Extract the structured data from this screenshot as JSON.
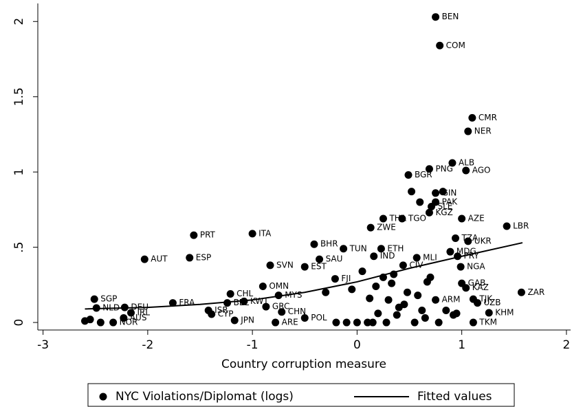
{
  "chart_data": {
    "type": "scatter",
    "xlabel": "Country corruption measure",
    "xlim": [
      -3.05,
      2.04
    ],
    "ylim": [
      -0.05,
      2.12
    ],
    "xticks": [
      -3,
      -2,
      -1,
      0,
      1,
      2
    ],
    "yticks": [
      0,
      {
        "value": 0.5,
        "label": ".5"
      },
      1,
      1.5,
      2
    ],
    "grid": false,
    "series": [
      {
        "name": "NYC Violations/Diplomat (logs)",
        "color": "#000000",
        "kind": "scatter",
        "x": [
          0.75,
          0.79,
          1.1,
          1.06,
          0.91,
          1.04,
          0.69,
          0.49,
          0.75,
          0.75,
          0.71,
          0.69,
          1.0,
          1.43,
          0.25,
          0.43,
          0.13,
          1.06,
          0.94,
          -1.56,
          -1.0,
          -2.03,
          -1.6,
          -0.41,
          -0.13,
          0.23,
          0.16,
          -0.83,
          -0.5,
          -0.36,
          0.44,
          0.99,
          0.57,
          0.89,
          0.96,
          -0.21,
          -0.9,
          1.0,
          1.04,
          1.11,
          1.15,
          1.26,
          1.11,
          1.57,
          -2.51,
          -2.49,
          -2.22,
          -2.16,
          -2.23,
          -1.76,
          -1.21,
          -1.24,
          -1.08,
          -1.42,
          -1.39,
          -1.17,
          -0.87,
          -0.72,
          -0.78,
          -0.75,
          -0.5,
          0.75,
          -2.33,
          0.52,
          0.6,
          0.82,
          0.67,
          0.35,
          0.05,
          0.18,
          0.3,
          0.48,
          0.2,
          0.62,
          0.4,
          0.1,
          -0.1,
          0.28,
          0.55,
          0.85,
          0.7,
          0.38,
          0.45,
          -0.3,
          0.0,
          -0.2,
          0.92,
          0.78,
          -2.6,
          -2.55,
          -2.45,
          -0.05,
          0.33,
          0.12,
          0.25,
          0.58,
          0.65,
          0.95,
          0.15
        ],
        "values": [
          2.03,
          1.84,
          1.36,
          1.27,
          1.06,
          1.01,
          1.02,
          0.98,
          0.86,
          0.8,
          0.77,
          0.73,
          0.69,
          0.64,
          0.69,
          0.69,
          0.63,
          0.54,
          0.56,
          0.58,
          0.59,
          0.42,
          0.43,
          0.52,
          0.49,
          0.49,
          0.44,
          0.38,
          0.37,
          0.42,
          0.38,
          0.37,
          0.43,
          0.47,
          0.44,
          0.29,
          0.24,
          0.26,
          0.23,
          0.155,
          0.13,
          0.064,
          0.0,
          0.2,
          0.155,
          0.096,
          0.1,
          0.064,
          0.03,
          0.13,
          0.19,
          0.13,
          0.14,
          0.08,
          0.055,
          0.014,
          0.105,
          0.07,
          0.0,
          0.18,
          0.03,
          0.15,
          0.0,
          0.87,
          0.8,
          0.87,
          0.27,
          0.32,
          0.34,
          0.24,
          0.15,
          0.2,
          0.06,
          0.08,
          0.1,
          0.0,
          0.0,
          0.0,
          0.0,
          0.08,
          0.3,
          0.05,
          0.12,
          0.2,
          0.0,
          0.0,
          0.05,
          0.0,
          0.01,
          0.02,
          0.0,
          0.22,
          0.26,
          0.16,
          0.3,
          0.18,
          0.03,
          0.06,
          0.0
        ],
        "labels": [
          "BEN",
          "COM",
          "CMR",
          "NER",
          "ALB",
          "AGO",
          "PNG",
          "BGR",
          "GIN",
          "PAK",
          "SLE",
          "KGZ",
          "AZE",
          "LBR",
          "THA",
          "TGO",
          "ZWE",
          "UKR",
          "TZA",
          "PRT",
          "ITA",
          "AUT",
          "ESP",
          "BHR",
          "TUN",
          "ETH",
          "IND",
          "SVN",
          "EST",
          "SAU",
          "CIV",
          "NGA",
          "MLI",
          "MDG",
          "PRY",
          "FJI",
          "OMN",
          "GAB",
          "KAZ",
          "TJK",
          "UZB",
          "KHM",
          "TKM",
          "ZAR",
          "SGP",
          "NLD",
          "DEU",
          "IRL",
          "AUS",
          "FRA",
          "CHL",
          "BEL",
          "KWT",
          "ISR",
          "CYP",
          "JPN",
          "GRC",
          "CHN",
          "ARE",
          "MYS",
          "POL",
          "ARM",
          "NOR",
          null,
          null,
          null,
          null,
          null,
          null,
          null,
          null,
          null,
          null,
          null,
          null,
          null,
          null,
          null,
          null,
          null,
          null,
          null,
          null,
          null,
          null,
          null,
          null,
          null,
          null,
          null,
          null,
          null,
          null,
          null,
          null,
          null,
          null,
          null,
          null
        ]
      },
      {
        "name": "Fitted values",
        "color": "#000000",
        "kind": "line",
        "x": [
          -2.6,
          -2.0,
          -1.5,
          -1.0,
          -0.5,
          0.0,
          0.5,
          1.0,
          1.58
        ],
        "values": [
          0.09,
          0.1,
          0.12,
          0.15,
          0.2,
          0.27,
          0.36,
          0.44,
          0.53
        ]
      }
    ]
  }
}
